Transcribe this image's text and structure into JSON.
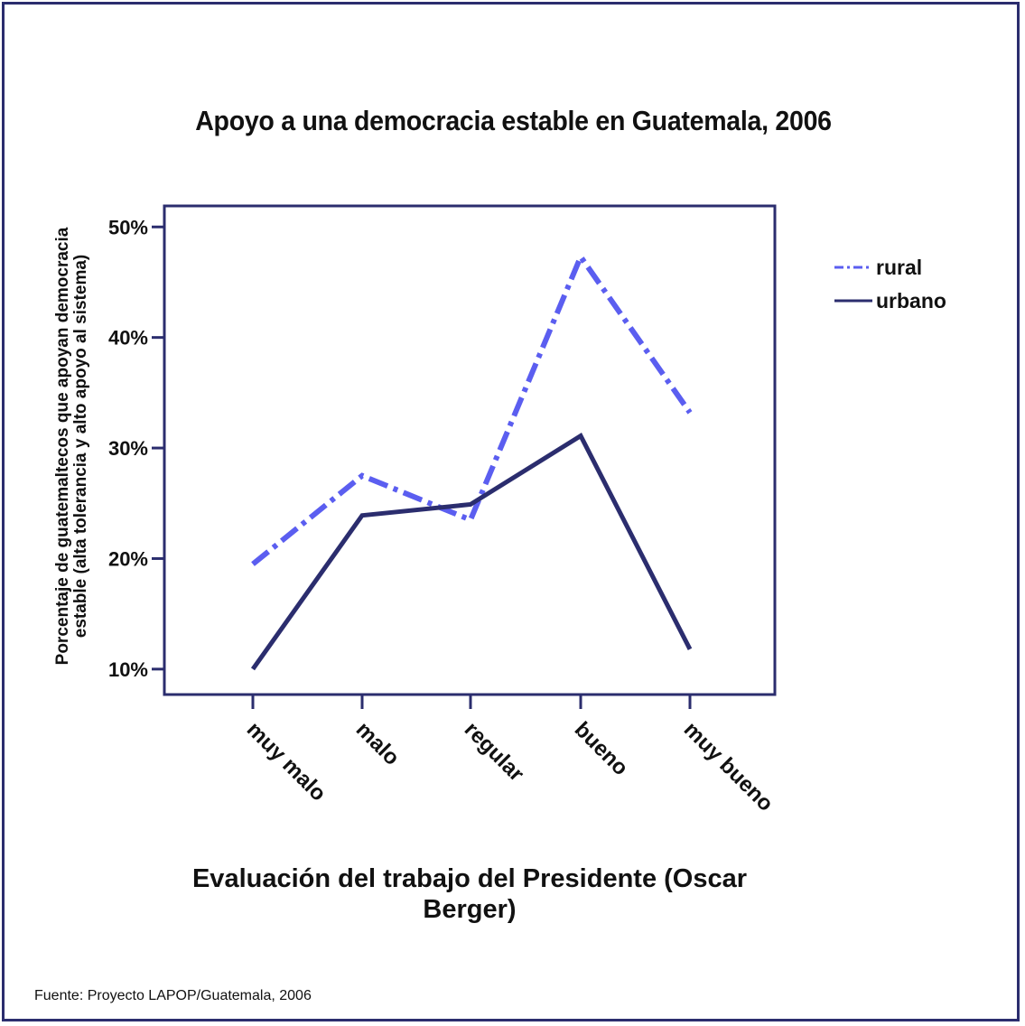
{
  "source_note": "Fuente: Proyecto LAPOP/Guatemala, 2006",
  "colors": {
    "rural": "#5b5ef0",
    "urbano": "#2b2d6e",
    "frame": "#2b2d6e"
  },
  "chart_data": {
    "type": "line",
    "title": "Apoyo a una democracia estable en Guatemala, 2006",
    "xlabel": "Evaluación del trabajo del Presidente (Oscar Berger)",
    "ylabel": "Porcentaje de guatemaltecos que apoyan democracia estable (alta tolerancia y alto apoyo al sistema)",
    "categories": [
      "muy malo",
      "malo",
      "regular",
      "bueno",
      "muy bueno"
    ],
    "ylim": [
      7.7,
      51.9
    ],
    "yticks": [
      10,
      20,
      30,
      40,
      50
    ],
    "ytick_labels": [
      "10%",
      "20%",
      "30%",
      "40%",
      "50%"
    ],
    "legend_position": "top-right, outside plot",
    "grid": false,
    "series": [
      {
        "name": "rural",
        "style": "dash-dot",
        "values": [
          19.5,
          27.5,
          23.5,
          47.3,
          33.2
        ]
      },
      {
        "name": "urbano",
        "style": "solid",
        "values": [
          10.0,
          23.9,
          24.9,
          31.1,
          11.8
        ]
      }
    ]
  }
}
